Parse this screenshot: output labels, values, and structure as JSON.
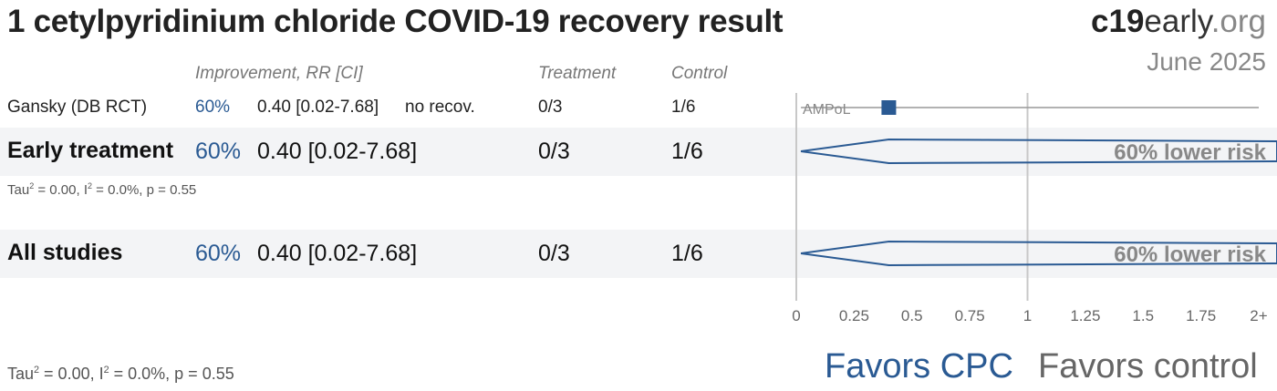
{
  "title": "1 cetylpyridinium chloride COVID-19 recovery result",
  "brand": {
    "bold": "c19",
    "rest": "early",
    "tld": ".org"
  },
  "date": "June 2025",
  "headers": {
    "improvement": "Improvement, RR [CI]",
    "treatment": "Treatment",
    "control": "Control"
  },
  "rows": [
    {
      "label": "Gansky (DB RCT)",
      "improvement": "60%",
      "rr_ci": "0.40 [0.02-7.68]",
      "outcome": "no recov.",
      "treatment": "0/3",
      "control": "1/6",
      "study_tag": "AMPoL"
    },
    {
      "label": "Early treatment",
      "improvement": "60%",
      "rr_ci": "0.40 [0.02-7.68]",
      "treatment": "0/3",
      "control": "1/6",
      "summary": "60% lower risk"
    },
    {
      "label": "All studies",
      "improvement": "60%",
      "rr_ci": "0.40 [0.02-7.68]",
      "treatment": "0/3",
      "control": "1/6",
      "summary": "60% lower risk"
    }
  ],
  "heterogeneity": {
    "tau_prefix": "Tau",
    "i_prefix": " = 0.00, I",
    "rest": " = 0.0%, p = 0.55",
    "sup": "2"
  },
  "favors": {
    "left": "Favors CPC",
    "right": "Favors control"
  },
  "colors": {
    "accent": "#2a5a93",
    "band": "#f3f4f6"
  },
  "chart_data": {
    "type": "forest",
    "xlabel": "",
    "xlim": [
      0,
      2
    ],
    "ticks": [
      "0",
      "0.25",
      "0.5",
      "0.75",
      "1",
      "1.25",
      "1.5",
      "1.75",
      "2+"
    ],
    "reference_line": 1,
    "studies": [
      {
        "name": "Gansky (DB RCT)",
        "tag": "AMPoL",
        "rr": 0.4,
        "ci": [
          0.02,
          7.68
        ]
      }
    ],
    "pooled": [
      {
        "name": "Early treatment",
        "rr": 0.4,
        "ci": [
          0.02,
          7.68
        ]
      },
      {
        "name": "All studies",
        "rr": 0.4,
        "ci": [
          0.02,
          7.68
        ]
      }
    ]
  }
}
